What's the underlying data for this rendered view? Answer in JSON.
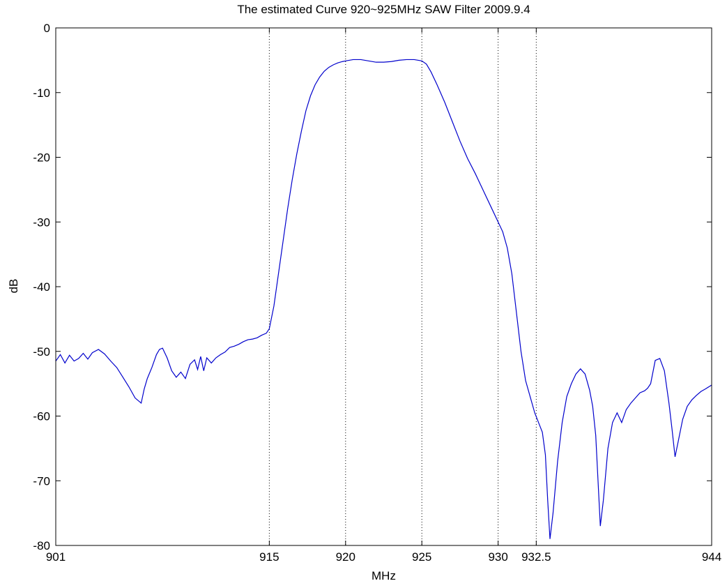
{
  "chart_data": {
    "type": "line",
    "title": "The estimated Curve 920~925MHz SAW Filter 2009.9.4",
    "xlabel": "MHz",
    "ylabel": "dB",
    "xlim": [
      901,
      944
    ],
    "ylim": [
      -80,
      0
    ],
    "xticks": [
      901,
      915,
      920,
      925,
      930,
      932.5,
      944
    ],
    "xtick_labels": [
      "901",
      "915",
      "920",
      "925",
      "930",
      "932.5",
      "944"
    ],
    "yticks": [
      0,
      -10,
      -20,
      -30,
      -40,
      -50,
      -60,
      -70,
      -80
    ],
    "ytick_labels": [
      "0",
      "-10",
      "-20",
      "-30",
      "-40",
      "-50",
      "-60",
      "-70",
      "-80"
    ],
    "vertical_dotted_lines": [
      915,
      920,
      925,
      930,
      932.5
    ],
    "grid": false,
    "line_color": "#0000cc",
    "series": [
      {
        "x": [
          901,
          901.3,
          901.6,
          901.9,
          902.2,
          902.5,
          902.8,
          903.1,
          903.4,
          903.8,
          904.2,
          904.6,
          905,
          905.4,
          905.8,
          906.2,
          906.6,
          906.8,
          907,
          907.3,
          907.6,
          907.8,
          908,
          908.3,
          908.6,
          908.9,
          909.2,
          909.5,
          909.8,
          910.1,
          910.3,
          910.5,
          910.7,
          910.9,
          911.2,
          911.5,
          911.8,
          912.1,
          912.4,
          912.7,
          913,
          913.3,
          913.6,
          913.9,
          914.2,
          914.5,
          914.8,
          915,
          915.3,
          915.6,
          915.9,
          916.2,
          916.5,
          916.8,
          917.1,
          917.4,
          917.7,
          918,
          918.3,
          918.6,
          918.9,
          919.2,
          919.5,
          919.8,
          920,
          920.5,
          921,
          921.5,
          922,
          922.5,
          923,
          923.5,
          924,
          924.5,
          925,
          925.3,
          925.6,
          926,
          926.5,
          927,
          927.5,
          928,
          928.5,
          929,
          929.5,
          930,
          930.3,
          930.6,
          930.9,
          931.2,
          931.5,
          931.8,
          932.1,
          932.4,
          932.7,
          932.9,
          933.1,
          933.25,
          933.4,
          933.6,
          933.9,
          934.2,
          934.5,
          934.8,
          935.1,
          935.4,
          935.7,
          936,
          936.2,
          936.4,
          936.55,
          936.7,
          936.9,
          937.2,
          937.5,
          937.8,
          938.1,
          938.4,
          938.7,
          939,
          939.3,
          939.6,
          939.8,
          940,
          940.3,
          940.6,
          940.9,
          941.2,
          941.4,
          941.6,
          941.8,
          942.1,
          942.4,
          942.7,
          943,
          943.3,
          943.6,
          944
        ],
        "y": [
          -51.5,
          -50.5,
          -51.8,
          -50.6,
          -51.5,
          -51.1,
          -50.3,
          -51.2,
          -50.2,
          -49.7,
          -50.4,
          -51.5,
          -52.5,
          -54,
          -55.5,
          -57.2,
          -58,
          -55.8,
          -54.2,
          -52.5,
          -50.5,
          -49.7,
          -49.5,
          -51,
          -53,
          -54,
          -53.2,
          -54.2,
          -52,
          -51.3,
          -52.8,
          -50.8,
          -53,
          -51,
          -51.8,
          -51,
          -50.5,
          -50.1,
          -49.4,
          -49.2,
          -48.9,
          -48.5,
          -48.2,
          -48.1,
          -47.9,
          -47.5,
          -47.2,
          -46.5,
          -43,
          -38,
          -33,
          -28,
          -23.5,
          -19.5,
          -16,
          -12.8,
          -10.5,
          -8.8,
          -7.6,
          -6.7,
          -6.1,
          -5.7,
          -5.4,
          -5.2,
          -5.1,
          -4.9,
          -4.9,
          -5.1,
          -5.3,
          -5.3,
          -5.2,
          -5,
          -4.9,
          -4.9,
          -5.1,
          -5.6,
          -6.8,
          -8.8,
          -11.5,
          -14.5,
          -17.5,
          -20.2,
          -22.5,
          -25,
          -27.5,
          -30,
          -31.5,
          -34,
          -38,
          -44,
          -50,
          -54.5,
          -57,
          -59.5,
          -61.3,
          -62.5,
          -66,
          -73,
          -79,
          -75,
          -67,
          -61,
          -57,
          -55,
          -53.5,
          -52.7,
          -53.5,
          -56,
          -58.5,
          -63,
          -70,
          -77,
          -73,
          -65,
          -61,
          -59.5,
          -61,
          -59,
          -58,
          -57.2,
          -56.4,
          -56.1,
          -55.7,
          -55,
          -51.4,
          -51.1,
          -53,
          -58,
          -62,
          -66.3,
          -64,
          -60.5,
          -58.5,
          -57.5,
          -56.8,
          -56.2,
          -55.8,
          -55.2
        ]
      }
    ]
  }
}
